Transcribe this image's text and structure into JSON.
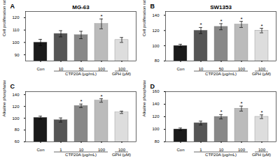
{
  "chart_data": [
    {
      "type": "bar",
      "panel_label": "A",
      "title": "MG-63",
      "ylabel": "Cell proliferation ratio (%)",
      "categories": [
        "Con",
        "10",
        "50",
        "100",
        "100"
      ],
      "values": [
        100,
        107,
        106,
        115,
        102
      ],
      "errors": [
        2.5,
        2.5,
        3,
        4,
        2
      ],
      "colors": [
        "#1a1a1a",
        "#555555",
        "#888888",
        "#bbbbbb",
        "#dddddd"
      ],
      "significance": [
        null,
        null,
        null,
        "*",
        null
      ],
      "x_groups": [
        null,
        "CTP20A (μg/mL)",
        "CTP20A (μg/mL)",
        "CTP20A (μg/mL)",
        "GPH (μM)"
      ],
      "ylim": [
        85,
        125
      ],
      "yticks": [
        90,
        100,
        110,
        120
      ]
    },
    {
      "type": "bar",
      "panel_label": "B",
      "title": "SW1353",
      "ylabel": "Cell proliferation ratio (%)",
      "categories": [
        "Con",
        "10",
        "50",
        "100",
        "100"
      ],
      "values": [
        100,
        120,
        125,
        128,
        120
      ],
      "errors": [
        2,
        4,
        4,
        4,
        3
      ],
      "colors": [
        "#1a1a1a",
        "#555555",
        "#888888",
        "#bbbbbb",
        "#dddddd"
      ],
      "significance": [
        null,
        "*",
        "*",
        "*",
        "*"
      ],
      "x_groups": [
        null,
        "CTP20A (μg/mL)",
        "CTP20A (μg/mL)",
        "CTP20A (μg/mL)",
        "GPH (μM)"
      ],
      "ylim": [
        80,
        145
      ],
      "yticks": [
        80,
        100,
        120,
        140
      ]
    },
    {
      "type": "bar",
      "panel_label": "C",
      "ylabel": "Alkaline phosphatase activity (%)",
      "categories": [
        "Con",
        "1",
        "10",
        "100",
        "100"
      ],
      "values": [
        101,
        97,
        121,
        130,
        110
      ],
      "errors": [
        2.5,
        3.5,
        3,
        3,
        2
      ],
      "colors": [
        "#1a1a1a",
        "#555555",
        "#888888",
        "#bbbbbb",
        "#dddddd"
      ],
      "significance": [
        null,
        null,
        "*",
        "*",
        null
      ],
      "x_groups": [
        null,
        "CTP20A (μg/mL)",
        "CTP20A (μg/mL)",
        "CTP20A (μg/mL)",
        "GPH (μM)"
      ],
      "ylim": [
        60,
        145
      ],
      "yticks": [
        60,
        80,
        100,
        120,
        140
      ]
    },
    {
      "type": "bar",
      "panel_label": "D",
      "ylabel": "Alkaline phosphatase activity (%)",
      "categories": [
        "Con",
        "1",
        "10",
        "100",
        "100"
      ],
      "values": [
        100,
        110,
        120,
        133,
        120
      ],
      "errors": [
        2,
        3,
        3.5,
        4,
        3
      ],
      "colors": [
        "#1a1a1a",
        "#555555",
        "#888888",
        "#bbbbbb",
        "#dddddd"
      ],
      "significance": [
        null,
        null,
        "*",
        "*",
        "*"
      ],
      "x_groups": [
        null,
        "CTP20A (μg/mL)",
        "CTP20A (μg/mL)",
        "CTP20A (μg/mL)",
        "GPH (μM)"
      ],
      "ylim": [
        80,
        160
      ],
      "yticks": [
        80,
        100,
        120,
        140,
        160
      ]
    }
  ]
}
